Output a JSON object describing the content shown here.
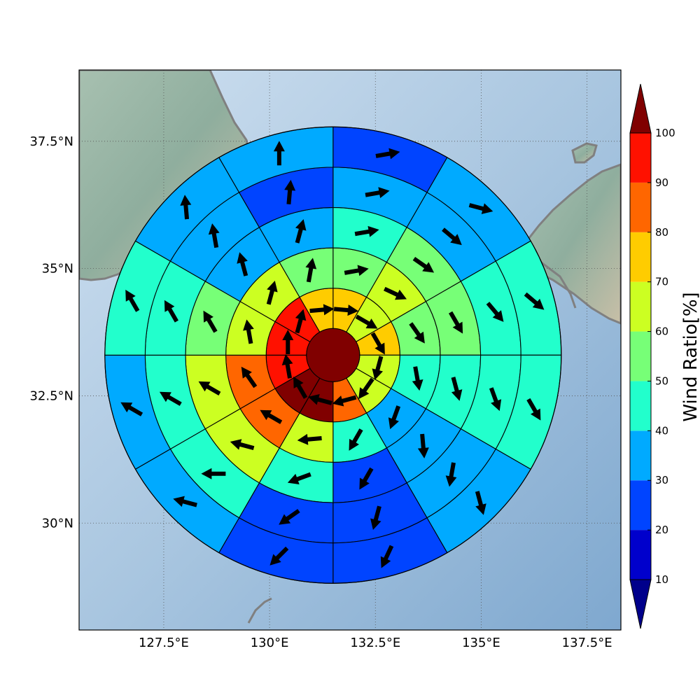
{
  "map": {
    "lon_range": [
      125.5,
      138.3
    ],
    "lat_range": [
      27.9,
      38.9
    ],
    "center": {
      "lon": 131.5,
      "lat": 33.3
    },
    "ring_count": 5,
    "sectors_per_ring": 12,
    "sector_start_bearing_deg": 0,
    "land_color": "#8fae9e",
    "sea_color": "#b3cde3",
    "coastline_color": "#808080",
    "x_ticks": [
      "127.5°E",
      "130°E",
      "132.5°E",
      "135°E",
      "137.5°E"
    ],
    "x_tick_values": [
      127.5,
      130,
      132.5,
      135,
      137.5
    ],
    "y_ticks": [
      "37.5°N",
      "35°N",
      "32.5°N",
      "30°N"
    ],
    "y_tick_values": [
      37.5,
      35,
      32.5,
      30
    ]
  },
  "colorbar": {
    "label": "Wind Ratio[%]",
    "ticks": [
      "10",
      "20",
      "30",
      "40",
      "50",
      "60",
      "70",
      "80",
      "90",
      "100"
    ],
    "levels": [
      10,
      20,
      30,
      40,
      50,
      60,
      70,
      80,
      90,
      100
    ],
    "colors": [
      "#0000cc",
      "#0044ff",
      "#00aaff",
      "#22ffcc",
      "#77ff77",
      "#ccff22",
      "#ffcc00",
      "#ff6600",
      "#ff1100"
    ],
    "under_color": "#00008b",
    "over_color": "#800000"
  },
  "chart_data": {
    "type": "heatmap",
    "description_units": "wind ratio in percent; wind direction as compass bearing the arrow points to (degrees)",
    "center_disk": {
      "value": 100
    },
    "rings": [
      {
        "ring": 1,
        "values": [
          75,
          65,
          75,
          65,
          65,
          85,
          100,
          100,
          95,
          95,
          95,
          75
        ],
        "directions": [
          95,
          120,
          150,
          195,
          215,
          255,
          285,
          330,
          350,
          0,
          15,
          85
        ]
      },
      {
        "ring": 2,
        "values": [
          55,
          65,
          55,
          45,
          35,
          45,
          65,
          85,
          85,
          65,
          65,
          55
        ],
        "directions": [
          80,
          115,
          145,
          170,
          200,
          210,
          265,
          300,
          325,
          350,
          15,
          10
        ]
      },
      {
        "ring": 3,
        "values": [
          45,
          55,
          55,
          45,
          35,
          25,
          45,
          65,
          65,
          55,
          35,
          35
        ],
        "directions": [
          80,
          125,
          150,
          165,
          175,
          210,
          250,
          285,
          300,
          330,
          345,
          15
        ]
      },
      {
        "ring": 4,
        "values": [
          35,
          35,
          45,
          45,
          35,
          25,
          25,
          45,
          45,
          45,
          35,
          25
        ],
        "directions": [
          80,
          130,
          140,
          160,
          190,
          195,
          235,
          270,
          300,
          330,
          350,
          5
        ]
      },
      {
        "ring": 5,
        "values": [
          25,
          35,
          45,
          45,
          35,
          25,
          25,
          35,
          35,
          45,
          35,
          35
        ],
        "directions": [
          80,
          105,
          130,
          150,
          165,
          205,
          225,
          285,
          300,
          330,
          355,
          0
        ]
      }
    ]
  }
}
